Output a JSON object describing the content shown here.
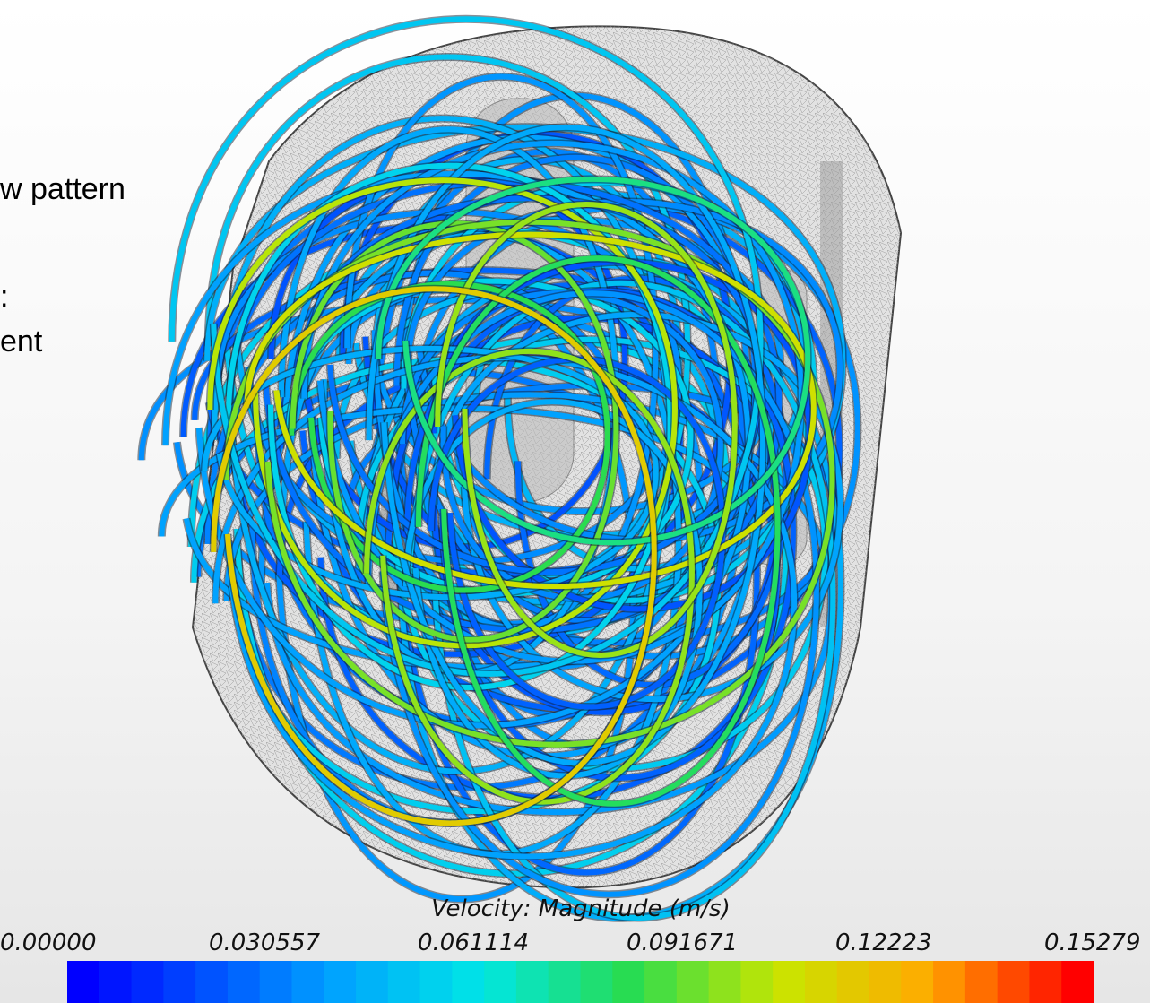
{
  "slide_text": [
    "w pattern",
    ":",
    "ent"
  ],
  "colorbar": {
    "title": "Velocity: Magnitude (m/s)",
    "tick_labels": [
      "0.00000",
      "0.030557",
      "0.061114",
      "0.091671",
      "0.12223",
      "0.15279"
    ]
  }
}
